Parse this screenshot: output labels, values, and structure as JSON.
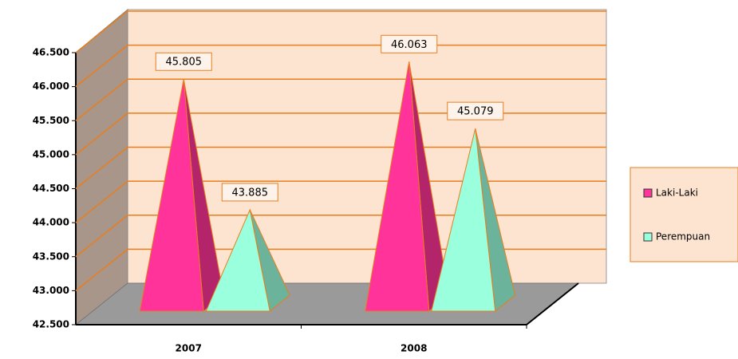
{
  "chart_data": {
    "type": "pyramid",
    "categories": [
      "2007",
      "2008"
    ],
    "series": [
      {
        "name": "Laki-Laki",
        "color": "#ff3399",
        "values": [
          45805,
          46063
        ],
        "value_labels": [
          "45.805",
          "46.063"
        ]
      },
      {
        "name": "Perempuan",
        "color": "#99ffdd",
        "values": [
          43885,
          45079
        ],
        "value_labels": [
          "43.885",
          "45.079"
        ]
      }
    ],
    "ylim": [
      42500,
      46500
    ],
    "yticks": [
      {
        "value": 42500,
        "label": "42.500"
      },
      {
        "value": 43000,
        "label": "43.000"
      },
      {
        "value": 43500,
        "label": "43.500"
      },
      {
        "value": 44000,
        "label": "44.000"
      },
      {
        "value": 44500,
        "label": "44.500"
      },
      {
        "value": 45000,
        "label": "45.000"
      },
      {
        "value": 45500,
        "label": "45.500"
      },
      {
        "value": 46000,
        "label": "46.000"
      },
      {
        "value": 46500,
        "label": "46.500"
      }
    ],
    "grid": true,
    "legend": "right"
  }
}
